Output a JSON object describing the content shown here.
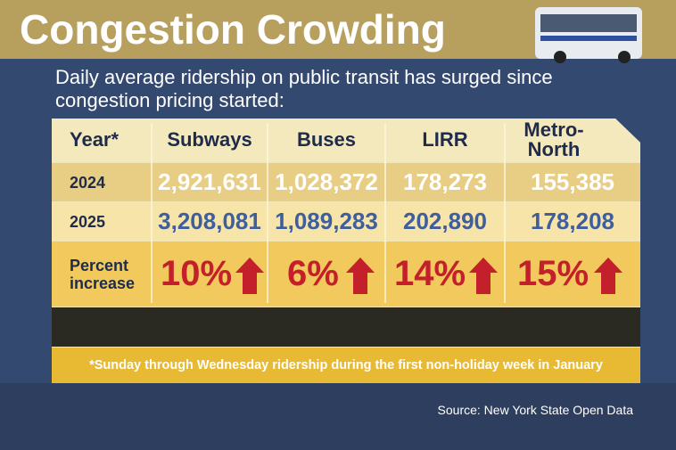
{
  "header": {
    "title": "Congestion Crowding"
  },
  "subtitle": "Daily average ridership on public transit has surged since congestion pricing started:",
  "table": {
    "columns": [
      "Year*",
      "Subways",
      "Buses",
      "LIRR",
      "Metro-North"
    ],
    "rows": [
      [
        "2024",
        "2,921,631",
        "1,028,372",
        "178,273",
        "155,385"
      ],
      [
        "2025",
        "3,208,081",
        "1,089,283",
        "202,890",
        "178,208"
      ],
      [
        "Percent increase",
        "10%",
        "6%",
        "14%",
        "15%"
      ]
    ],
    "footnote": "*Sunday through Wednesday ridership during the first non-holiday week in January"
  },
  "source": "Source: New York State Open Data"
}
